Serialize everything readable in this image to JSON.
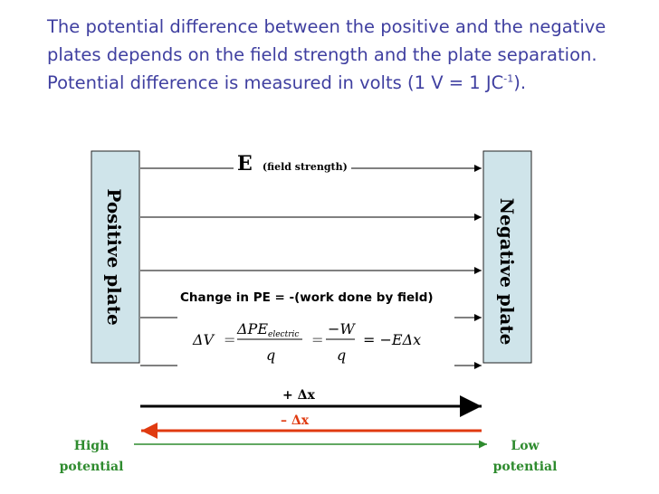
{
  "intro": {
    "text_before_sup": "The potential difference between the positive and the negative plates depends on the field strength and the plate separation.  Potential difference is measured in volts (1 V = 1 JC",
    "sup": "-1",
    "text_after_sup": ")."
  },
  "diagram": {
    "field_label_symbol": "E",
    "field_label_text": "(field strength)",
    "positive_plate": "Positive plate",
    "negative_plate": "Negative plate",
    "pe_change": "Change in PE = -(work done by field)",
    "equation": {
      "lhs": "ΔV",
      "eq1": "=",
      "frac1_num": "ΔPE",
      "frac1_num_sub": "electric",
      "frac1_den": "q",
      "eq2": "=",
      "frac2_num": "−W",
      "frac2_den": "q",
      "eq3": "= −EΔx"
    },
    "plus_dx": "+ Δx",
    "minus_dx": "– Δx",
    "high_potential_line1": "High",
    "high_potential_line2": "potential",
    "low_potential_line1": "Low",
    "low_potential_line2": "potential"
  },
  "colors": {
    "text_blue": "#3f3fa0",
    "plate_fill": "#cfe4ea",
    "red": "#e03a10",
    "green": "#2e8b2e"
  }
}
